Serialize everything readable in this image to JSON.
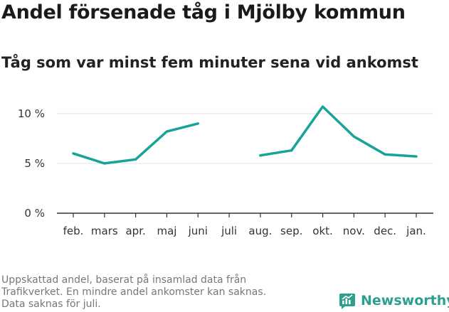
{
  "chart_data": {
    "type": "line",
    "title": "Andel försenade tåg i Mjölby kommun",
    "subtitle": "Tåg som var minst fem minuter sena vid ankomst",
    "categories": [
      "feb.",
      "mars",
      "apr.",
      "maj",
      "juni",
      "juli",
      "aug.",
      "sep.",
      "okt.",
      "nov.",
      "dec.",
      "jan."
    ],
    "series": [
      {
        "values": [
          6.0,
          5.0,
          5.4,
          8.2,
          9.0,
          null,
          5.8,
          6.3,
          10.7,
          7.7,
          5.9,
          5.7
        ],
        "color": "#17a398"
      }
    ],
    "ylim": [
      0,
      10.7
    ],
    "yticks": [
      0,
      5,
      10
    ],
    "ytick_labels": [
      "0 %",
      "5 %",
      "10 %"
    ],
    "xlabel": "",
    "ylabel": "",
    "grid": true,
    "colors": {
      "line": "#17a398",
      "grid": "#e3e3e3",
      "axis": "#333333"
    }
  },
  "footnote": {
    "lines": [
      "Uppskattad andel, baserat på insamlad data från",
      "Trafikverket. En mindre andel ankomster kan saknas.",
      "Data saknas för juli."
    ]
  },
  "brand": {
    "name": "Newsworthy",
    "icon": "newsworthy-logo-icon",
    "color": "#2c9f8f"
  }
}
